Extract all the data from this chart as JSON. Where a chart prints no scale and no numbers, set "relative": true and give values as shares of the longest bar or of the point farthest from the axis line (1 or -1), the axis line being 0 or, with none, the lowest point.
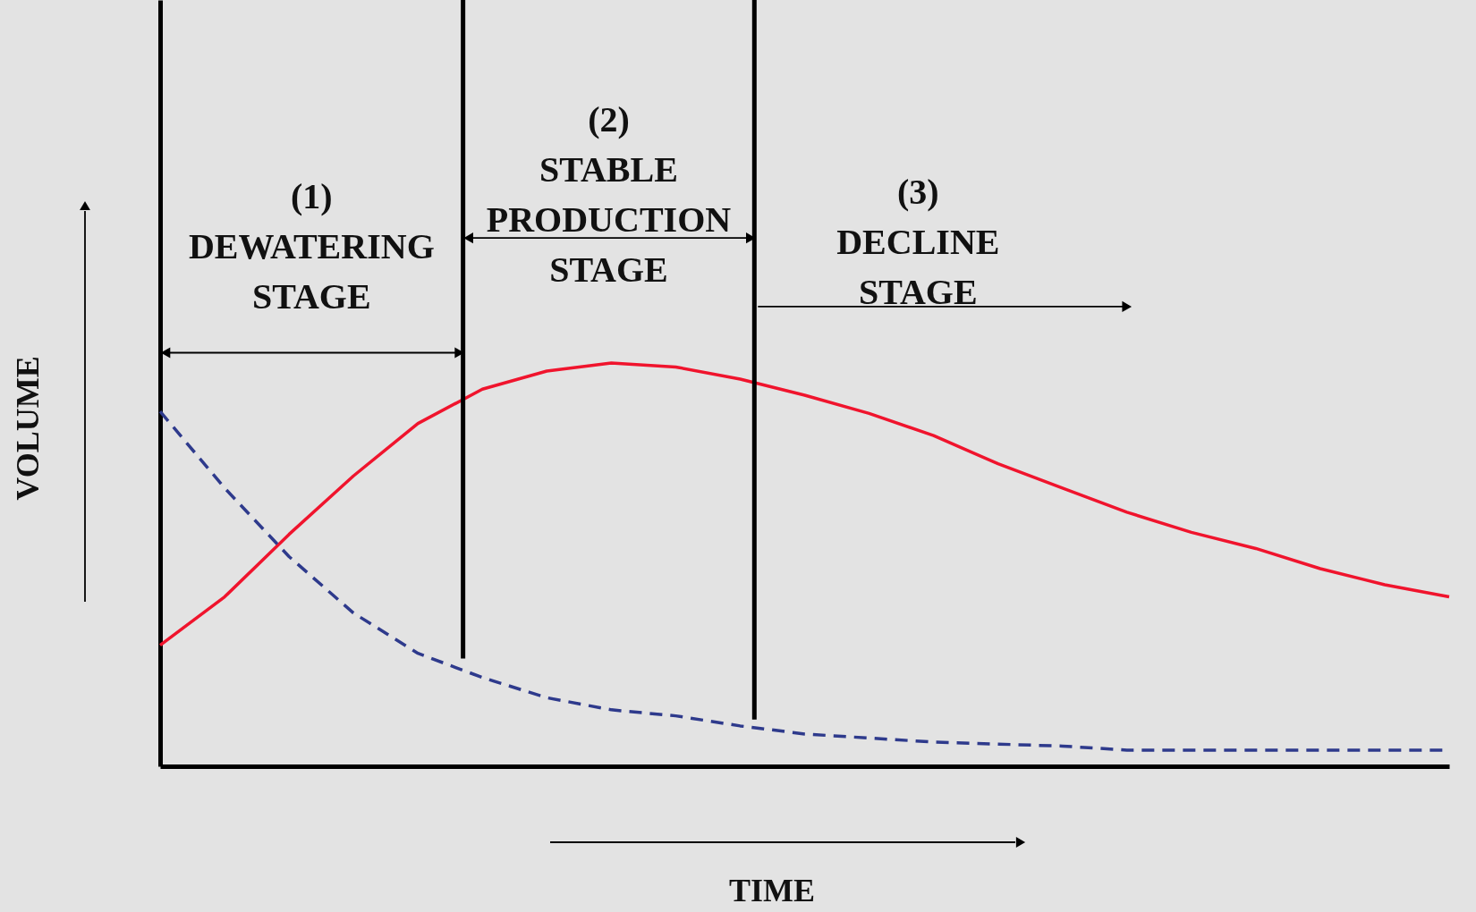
{
  "chart_data": {
    "type": "line",
    "relative": true,
    "xlabel": "TIME",
    "ylabel": "VOLUME",
    "grid": false,
    "categories": [
      null,
      null,
      null,
      null,
      null,
      null,
      null,
      null,
      null,
      null,
      null,
      null,
      null,
      null,
      null,
      null,
      null,
      null,
      null,
      null,
      null
    ],
    "series": [
      {
        "color": "#f0142d",
        "line_style": "solid",
        "values": [
          0.3,
          0.42,
          0.575,
          0.72,
          0.85,
          0.935,
          0.98,
          1.0,
          0.99,
          0.96,
          0.92,
          0.875,
          0.82,
          0.75,
          0.69,
          0.63,
          0.58,
          0.54,
          0.49,
          0.45,
          0.42
        ]
      },
      {
        "color": "#2e3a8c",
        "line_style": "dashed",
        "values": [
          0.88,
          0.69,
          0.52,
          0.38,
          0.28,
          0.22,
          0.17,
          0.14,
          0.125,
          0.1,
          0.08,
          0.07,
          0.06,
          0.055,
          0.05,
          0.04,
          0.04,
          0.04,
          0.04,
          0.04,
          0.04
        ]
      }
    ],
    "annotations": [
      "(1)\nDEWATERING\nSTAGE",
      "(2)\nSTABLE\nPRODUCTION\nSTAGE",
      "(3)\nDECLINE\nSTAGE"
    ]
  }
}
